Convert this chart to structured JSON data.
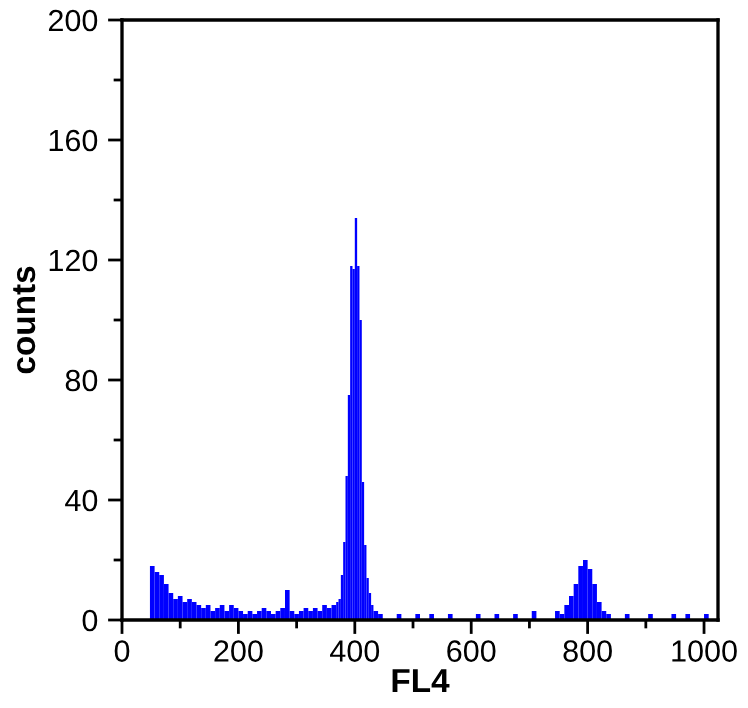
{
  "chart_data": {
    "type": "histogram",
    "xlabel": "FL4",
    "ylabel": "counts",
    "color": "#0000ff",
    "bins": [
      48,
      56,
      64,
      72,
      80,
      88,
      96,
      104,
      112,
      120,
      128,
      136,
      144,
      152,
      160,
      168,
      176,
      184,
      192,
      200,
      208,
      216,
      224,
      232,
      240,
      248,
      256,
      264,
      272,
      280,
      288,
      296,
      304,
      312,
      320,
      328,
      336,
      344,
      352,
      360,
      368,
      372,
      376,
      380,
      384,
      388,
      392,
      396,
      400,
      404,
      408,
      412,
      416,
      420,
      424,
      428,
      432,
      440,
      448,
      472,
      480,
      504,
      512,
      528,
      536,
      560,
      568,
      608,
      616,
      640,
      648,
      672,
      680,
      704,
      712,
      744,
      752,
      760,
      768,
      776,
      784,
      792,
      800,
      808,
      816,
      824,
      832,
      840,
      864,
      872,
      904,
      912,
      944,
      952,
      968,
      976,
      1000,
      1008
    ],
    "values": [
      18,
      16,
      15,
      12,
      9,
      7,
      8,
      6,
      7,
      6,
      5,
      4,
      5,
      3,
      4,
      5,
      3,
      5,
      4,
      3,
      2,
      3,
      2,
      3,
      4,
      3,
      2,
      3,
      4,
      10,
      3,
      2,
      3,
      4,
      3,
      4,
      3,
      5,
      4,
      5,
      6,
      7,
      15,
      26,
      48,
      75,
      118,
      117,
      134,
      118,
      100,
      46,
      25,
      14,
      9,
      5,
      3,
      2,
      0,
      2,
      0,
      2,
      0,
      2,
      0,
      2,
      0,
      2,
      0,
      2,
      0,
      2,
      0,
      3,
      0,
      3,
      2,
      5,
      8,
      12,
      18,
      20,
      17,
      12,
      6,
      3,
      2,
      0,
      2,
      0,
      2,
      0,
      2,
      0,
      2,
      0,
      2
    ],
    "xlim": [
      0,
      1024
    ],
    "ylim": [
      0,
      200
    ],
    "xticks": [
      0,
      {
        "value": 100,
        "label": null
      },
      200,
      {
        "value": 300,
        "label": null
      },
      400,
      {
        "value": 500,
        "label": null
      },
      600,
      {
        "value": 700,
        "label": null
      },
      800,
      {
        "value": 900,
        "label": null
      },
      1000
    ],
    "yticks": [
      0,
      {
        "value": 20,
        "label": null
      },
      40,
      {
        "value": 60,
        "label": null
      },
      80,
      {
        "value": 100,
        "label": null
      },
      120,
      {
        "value": 140,
        "label": null
      },
      160,
      {
        "value": 180,
        "label": null
      },
      200
    ],
    "grid": false
  }
}
